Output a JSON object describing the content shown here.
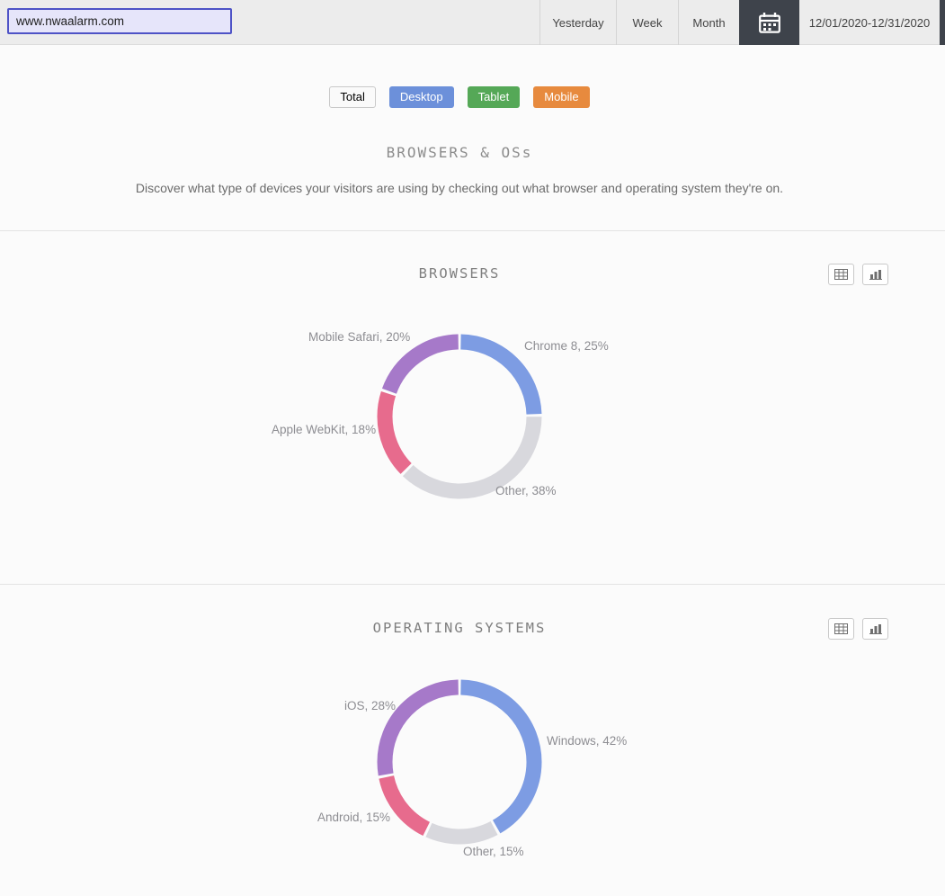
{
  "header": {
    "domain_input": {
      "value": "www.nwaalarm.com"
    },
    "range_tabs": [
      {
        "label": "Yesterday"
      },
      {
        "label": "Week"
      },
      {
        "label": "Month"
      }
    ],
    "calendar_button": {
      "icon": "calendar-icon",
      "bg": "#3e434b"
    },
    "date_range": "12/01/2020-12/31/2020"
  },
  "filters": {
    "items": [
      {
        "label": "Total",
        "color": "#fafafa",
        "text_color": "#4a4a4a"
      },
      {
        "label": "Desktop",
        "color": "#6c90da",
        "text_color": "#ffffff"
      },
      {
        "label": "Tablet",
        "color": "#55a857",
        "text_color": "#ffffff"
      },
      {
        "label": "Mobile",
        "color": "#e78a3e",
        "text_color": "#ffffff"
      }
    ]
  },
  "intro": {
    "title": "BROWSERS & OSs",
    "subtitle": "Discover what type of devices your visitors are using by checking out what browser and operating system they're on."
  },
  "view_toggle": {
    "table_icon": "table-grid-icon",
    "chart_icon": "bar-chart-icon"
  },
  "chart_data": [
    {
      "type": "pie",
      "variant": "donut",
      "title": "BROWSERS",
      "labels": [
        "Chrome 8",
        "Other",
        "Apple WebKit",
        "Mobile Safari"
      ],
      "values": [
        25,
        38,
        18,
        20
      ],
      "colors": [
        "#7d9ce3",
        "#d8d8dd",
        "#e76b8d",
        "#a679c9"
      ],
      "legend_position": "around"
    },
    {
      "type": "pie",
      "variant": "donut",
      "title": "OPERATING SYSTEMS",
      "labels": [
        "Windows",
        "Other",
        "Android",
        "iOS"
      ],
      "values": [
        42,
        15,
        15,
        28
      ],
      "colors": [
        "#7d9ce3",
        "#d8d8dd",
        "#e76b8d",
        "#a679c9"
      ],
      "legend_position": "around"
    }
  ]
}
